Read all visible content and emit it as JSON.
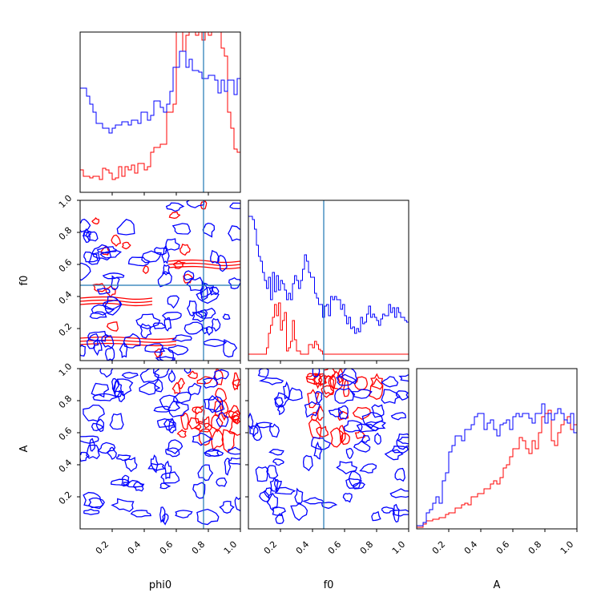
{
  "chart_data": {
    "type": "corner",
    "parameters": [
      "phi0",
      "f0",
      "A"
    ],
    "axis_labels": {
      "x": [
        "phi0",
        "f0",
        "A"
      ],
      "y": [
        "f0",
        "A"
      ]
    },
    "range": [
      0,
      1
    ],
    "ticks": {
      "marginal_x": [
        0.2,
        0.4,
        0.6,
        0.8
      ],
      "phi0": [
        "0.2",
        "0.4",
        "0.6",
        "0.8",
        "1.0"
      ],
      "f0": [
        "0.2",
        "0.4",
        "0.6",
        "0.8",
        "1.0"
      ],
      "A": [
        "0.2",
        "0.4",
        "0.6",
        "0.8",
        "1.0"
      ]
    },
    "truths": {
      "phi0": 0.77,
      "f0": 0.47
    },
    "colors": {
      "blue": "#0000ff",
      "red": "#ff0000",
      "truth": "#1f77b4"
    },
    "histograms": {
      "phi0": {
        "blue": [
          0.65,
          0.65,
          0.6,
          0.55,
          0.5,
          0.43,
          0.43,
          0.4,
          0.4,
          0.37,
          0.4,
          0.42,
          0.42,
          0.44,
          0.44,
          0.42,
          0.45,
          0.45,
          0.43,
          0.5,
          0.5,
          0.45,
          0.48,
          0.57,
          0.57,
          0.53,
          0.5,
          0.55,
          0.63,
          0.78,
          0.78,
          0.88,
          0.88,
          0.78,
          0.83,
          0.76,
          0.76,
          0.75,
          0.71,
          0.71,
          0.73,
          0.73,
          0.7,
          0.62,
          0.7,
          0.63,
          0.7,
          0.7,
          0.61,
          0.71
        ],
        "red": [
          0.14,
          0.1,
          0.1,
          0.09,
          0.1,
          0.1,
          0.08,
          0.15,
          0.14,
          0.12,
          0.08,
          0.09,
          0.16,
          0.1,
          0.16,
          0.14,
          0.17,
          0.12,
          0.18,
          0.18,
          0.14,
          0.16,
          0.25,
          0.28,
          0.28,
          0.3,
          0.3,
          0.5,
          0.5,
          0.55,
          1.05,
          1.05,
          0.88,
          0.98,
          1.0,
          1.05,
          0.98,
          1.05,
          0.95,
          1.05,
          0.98,
          1.05,
          1.05,
          1.05,
          0.9,
          0.85,
          0.5,
          0.4,
          0.27,
          0.25
        ]
      },
      "f0": {
        "blue": [
          0.9,
          0.9,
          0.88,
          0.82,
          0.72,
          0.65,
          0.62,
          0.55,
          0.5,
          0.45,
          0.52,
          0.38,
          0.55,
          0.43,
          0.53,
          0.44,
          0.5,
          0.48,
          0.44,
          0.38,
          0.42,
          0.38,
          0.48,
          0.53,
          0.5,
          0.45,
          0.5,
          0.57,
          0.66,
          0.62,
          0.55,
          0.52,
          0.52,
          0.42,
          0.39,
          0.35,
          0.35,
          0.27,
          0.34,
          0.35,
          0.28,
          0.4,
          0.38,
          0.4,
          0.38,
          0.38,
          0.32,
          0.35,
          0.28,
          0.23,
          0.27,
          0.2,
          0.21,
          0.17,
          0.2,
          0.18,
          0.27,
          0.23,
          0.24,
          0.29,
          0.34,
          0.27,
          0.29,
          0.27,
          0.25,
          0.22,
          0.26,
          0.29,
          0.28,
          0.28,
          0.35,
          0.3,
          0.33,
          0.27,
          0.33,
          0.3,
          0.27,
          0.27,
          0.25,
          0.24
        ],
        "red": [
          0.04,
          0.04,
          0.04,
          0.04,
          0.04,
          0.04,
          0.04,
          0.04,
          0.04,
          0.08,
          0.17,
          0.22,
          0.27,
          0.35,
          0.28,
          0.36,
          0.19,
          0.25,
          0.3,
          0.06,
          0.08,
          0.12,
          0.25,
          0.13,
          0.06,
          0.06,
          0.04,
          0.04,
          0.04,
          0.04,
          0.1,
          0.1,
          0.08,
          0.12,
          0.1,
          0.07,
          0.06,
          0.04,
          0.04,
          0.04,
          0.04,
          0.04,
          0.04,
          0.04,
          0.04,
          0.04,
          0.04,
          0.04,
          0.04,
          0.04,
          0.04,
          0.04,
          0.04,
          0.04,
          0.04,
          0.04,
          0.04,
          0.04,
          0.04,
          0.04,
          0.04,
          0.04,
          0.04,
          0.04,
          0.04,
          0.04,
          0.04,
          0.04,
          0.04,
          0.04,
          0.04,
          0.04,
          0.04,
          0.04,
          0.04,
          0.04,
          0.04,
          0.04,
          0.04,
          0.04
        ]
      },
      "A": {
        "blue": [
          0.02,
          0.02,
          0.04,
          0.1,
          0.12,
          0.16,
          0.2,
          0.16,
          0.3,
          0.35,
          0.48,
          0.52,
          0.58,
          0.58,
          0.55,
          0.62,
          0.62,
          0.65,
          0.7,
          0.72,
          0.72,
          0.62,
          0.66,
          0.68,
          0.62,
          0.58,
          0.65,
          0.66,
          0.68,
          0.62,
          0.7,
          0.72,
          0.7,
          0.72,
          0.72,
          0.69,
          0.66,
          0.72,
          0.72,
          0.78,
          0.66,
          0.72,
          0.68,
          0.72,
          0.75,
          0.72,
          0.68,
          0.66,
          0.72,
          0.6
        ],
        "red": [
          0.01,
          0.01,
          0.03,
          0.05,
          0.05,
          0.06,
          0.06,
          0.07,
          0.07,
          0.09,
          0.1,
          0.1,
          0.13,
          0.13,
          0.15,
          0.16,
          0.15,
          0.2,
          0.2,
          0.22,
          0.22,
          0.25,
          0.25,
          0.28,
          0.3,
          0.28,
          0.32,
          0.38,
          0.4,
          0.45,
          0.5,
          0.5,
          0.57,
          0.55,
          0.5,
          0.47,
          0.55,
          0.5,
          0.6,
          0.7,
          0.72,
          0.74,
          0.55,
          0.52,
          0.6,
          0.65,
          0.68,
          0.7,
          0.62,
          0.65
        ]
      }
    }
  }
}
